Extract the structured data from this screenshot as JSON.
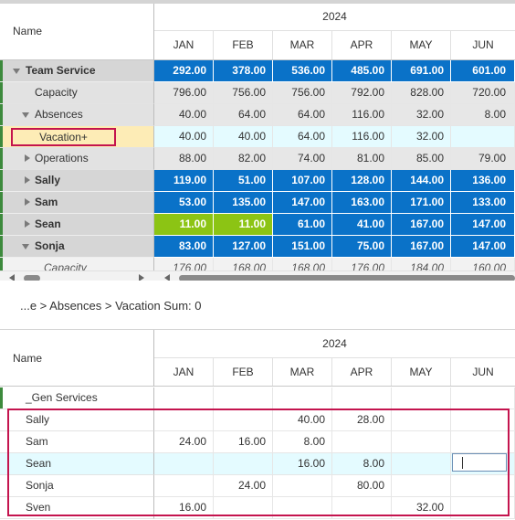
{
  "grid1": {
    "name_header": "Name",
    "year": "2024",
    "months": [
      "JAN",
      "FEB",
      "MAR",
      "APR",
      "MAY",
      "JUN"
    ],
    "rows": [
      {
        "name": "Team Service",
        "values": [
          "292.00",
          "378.00",
          "536.00",
          "485.00",
          "691.00",
          "601.00"
        ]
      },
      {
        "name": "Capacity",
        "values": [
          "796.00",
          "756.00",
          "756.00",
          "792.00",
          "828.00",
          "720.00"
        ]
      },
      {
        "name": "Absences",
        "values": [
          "40.00",
          "64.00",
          "64.00",
          "116.00",
          "32.00",
          "8.00"
        ]
      },
      {
        "name": "Vacation+",
        "values": [
          "40.00",
          "40.00",
          "64.00",
          "116.00",
          "32.00",
          ""
        ]
      },
      {
        "name": "Operations",
        "values": [
          "88.00",
          "82.00",
          "74.00",
          "81.00",
          "85.00",
          "79.00"
        ]
      },
      {
        "name": "Sally",
        "values": [
          "119.00",
          "51.00",
          "107.00",
          "128.00",
          "144.00",
          "136.00"
        ]
      },
      {
        "name": "Sam",
        "values": [
          "53.00",
          "135.00",
          "147.00",
          "163.00",
          "171.00",
          "133.00"
        ]
      },
      {
        "name": "Sean",
        "values": [
          "11.00",
          "11.00",
          "61.00",
          "41.00",
          "167.00",
          "147.00"
        ]
      },
      {
        "name": "Sonja",
        "values": [
          "83.00",
          "127.00",
          "151.00",
          "75.00",
          "167.00",
          "147.00"
        ]
      },
      {
        "name": "Capacity",
        "values": [
          "176.00",
          "168.00",
          "168.00",
          "176.00",
          "184.00",
          "160.00"
        ]
      }
    ],
    "colors": {
      "group": "#0a72c8",
      "over": "#8cc414",
      "selected": "#fdecb6",
      "row_highlight": "#e4fbff"
    }
  },
  "breadcrumb": "...e > Absences > Vacation Sum:  0",
  "grid2": {
    "name_header": "Name",
    "year": "2024",
    "months": [
      "JAN",
      "FEB",
      "MAR",
      "APR",
      "MAY",
      "JUN"
    ],
    "rows": [
      {
        "name": "_Gen Services",
        "values": [
          "",
          "",
          "",
          "",
          "",
          ""
        ]
      },
      {
        "name": "Sally",
        "values": [
          "",
          "",
          "40.00",
          "28.00",
          "",
          ""
        ]
      },
      {
        "name": "Sam",
        "values": [
          "24.00",
          "16.00",
          "8.00",
          "",
          "",
          ""
        ]
      },
      {
        "name": "Sean",
        "values": [
          "",
          "",
          "16.00",
          "8.00",
          "",
          ""
        ]
      },
      {
        "name": "Sonja",
        "values": [
          "",
          "24.00",
          "",
          "80.00",
          "",
          ""
        ]
      },
      {
        "name": "Sven",
        "values": [
          "16.00",
          "",
          "",
          "",
          "32.00",
          ""
        ]
      }
    ]
  }
}
